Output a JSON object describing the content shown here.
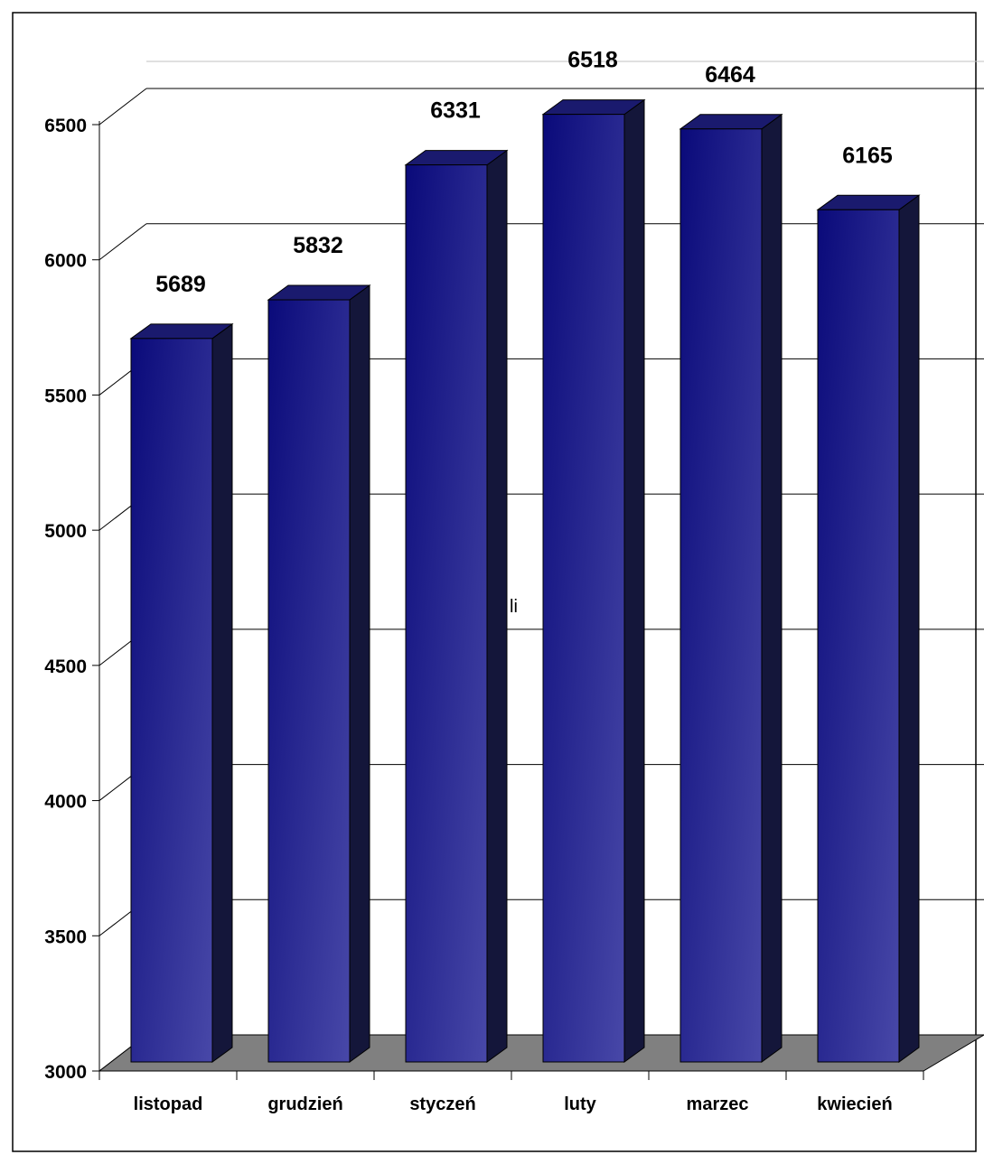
{
  "chart_data": {
    "type": "bar",
    "title": "",
    "xlabel": "",
    "ylabel": "",
    "categories": [
      "listopad",
      "grudzień",
      "styczeń",
      "luty",
      "marzec",
      "kwiecień"
    ],
    "series": [
      {
        "values": [
          5689,
          5832,
          6331,
          6518,
          6464,
          6165
        ]
      }
    ],
    "data_labels": [
      "5689",
      "5832",
      "6331",
      "6518",
      "6464",
      "6165"
    ],
    "ylim": [
      3000,
      6500
    ],
    "yticks": [
      "3000",
      "3500",
      "4000",
      "4500",
      "5000",
      "5500",
      "6000",
      "6500"
    ],
    "grid": true,
    "three_d": true,
    "annotations": [
      "li"
    ],
    "colors": {
      "bar_front_dark": "#0a0a7a",
      "bar_front_light": "#4848a8",
      "bar_side": "#14163a",
      "bar_top": "#1a1a6e",
      "floor": "#808080",
      "grid": "#000000",
      "frame": "#000000"
    }
  }
}
